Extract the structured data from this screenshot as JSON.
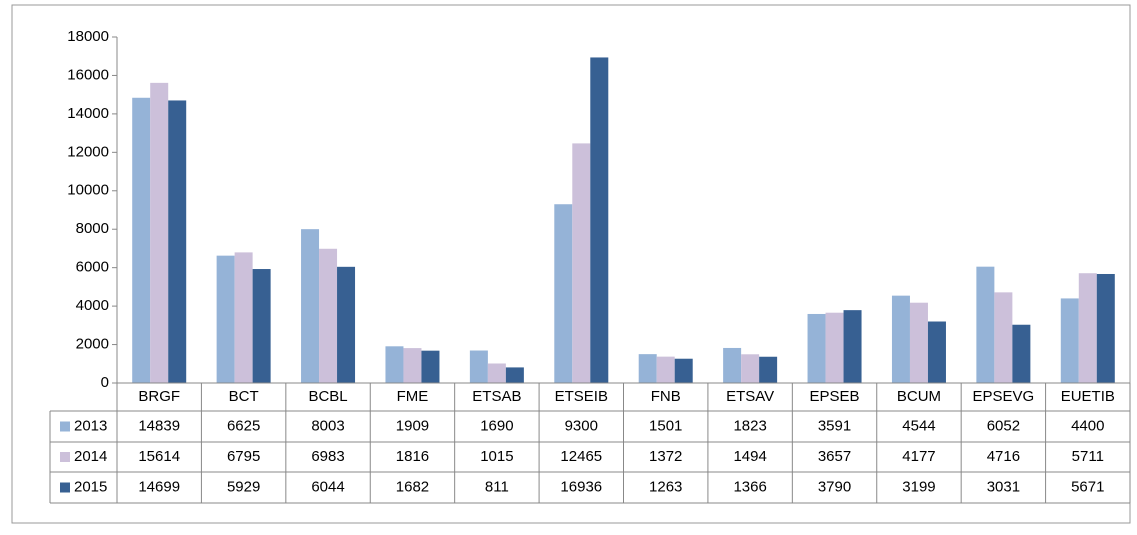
{
  "chart_data": {
    "type": "bar",
    "categories": [
      "BRGF",
      "BCT",
      "BCBL",
      "FME",
      "ETSAB",
      "ETSEIB",
      "FNB",
      "ETSAV",
      "EPSEB",
      "BCUM",
      "EPSEVG",
      "EUETIB"
    ],
    "series": [
      {
        "name": "2013",
        "color": "#95b3d7",
        "values": [
          14839,
          6625,
          8003,
          1909,
          1690,
          9300,
          1501,
          1823,
          3591,
          4544,
          6052,
          4400
        ]
      },
      {
        "name": "2014",
        "color": "#ccc0da",
        "values": [
          15614,
          6795,
          6983,
          1816,
          1015,
          12465,
          1372,
          1494,
          3657,
          4177,
          4716,
          5711
        ]
      },
      {
        "name": "2015",
        "color": "#376092",
        "values": [
          14699,
          5929,
          6044,
          1682,
          811,
          16936,
          1263,
          1366,
          3790,
          3199,
          3031,
          5671
        ]
      }
    ],
    "ylim": [
      0,
      18000
    ],
    "yticks": [
      0,
      2000,
      4000,
      6000,
      8000,
      10000,
      12000,
      14000,
      16000,
      18000
    ],
    "grid": false,
    "legend": "data-table"
  }
}
